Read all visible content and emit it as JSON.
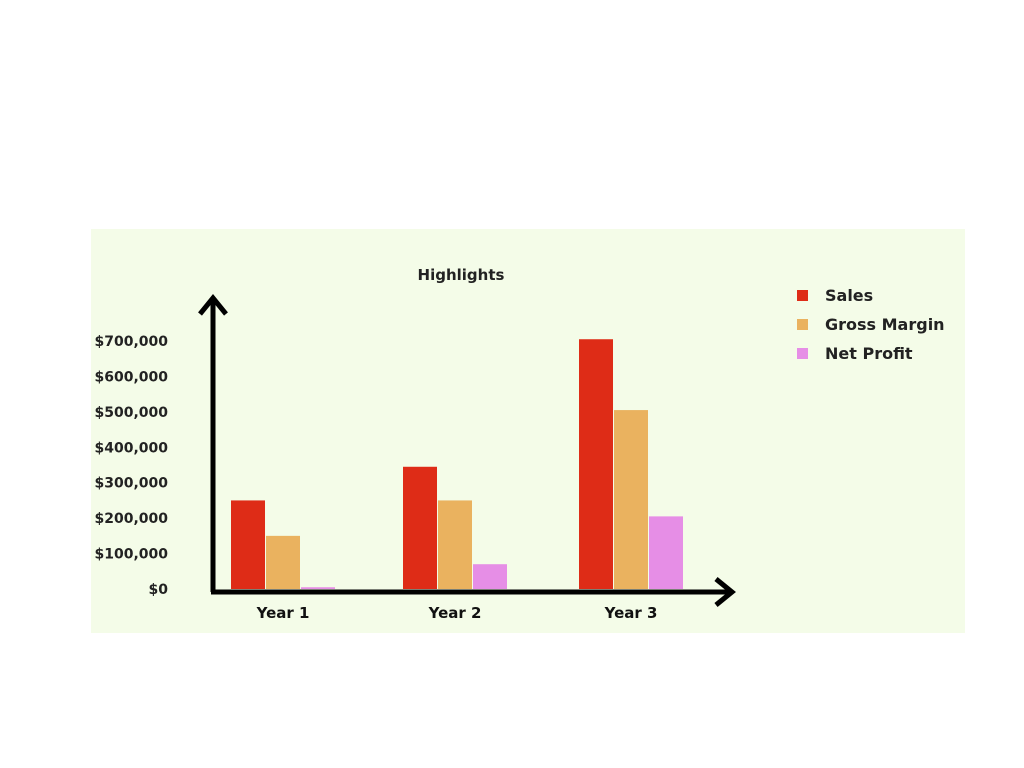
{
  "chart_data": {
    "type": "bar",
    "title": "Highlights",
    "xlabel": "",
    "ylabel": "",
    "categories": [
      "Year 1",
      "Year 2",
      "Year 3"
    ],
    "series": [
      {
        "name": "Sales",
        "color": "#de2c17",
        "values": [
          250000,
          345000,
          705000
        ]
      },
      {
        "name": "Gross Margin",
        "color": "#eab25f",
        "values": [
          150000,
          250000,
          505000
        ]
      },
      {
        "name": "Net Profit",
        "color": "#e68ee6",
        "values": [
          5000,
          70000,
          205000
        ]
      }
    ],
    "yticks": [
      {
        "value": 0,
        "label": "$0"
      },
      {
        "value": 100000,
        "label": "$100,000"
      },
      {
        "value": 200000,
        "label": "$200,000"
      },
      {
        "value": 300000,
        "label": "$300,000"
      },
      {
        "value": 400000,
        "label": "$400,000"
      },
      {
        "value": 500000,
        "label": "$500,000"
      },
      {
        "value": 600000,
        "label": "$600,000"
      },
      {
        "value": 700000,
        "label": "$700,000"
      }
    ],
    "ylim": [
      0,
      700000
    ],
    "grid": false,
    "legend_position": "right"
  },
  "colors": {
    "panel_background": "#f4fce8",
    "axis": "#000000"
  }
}
